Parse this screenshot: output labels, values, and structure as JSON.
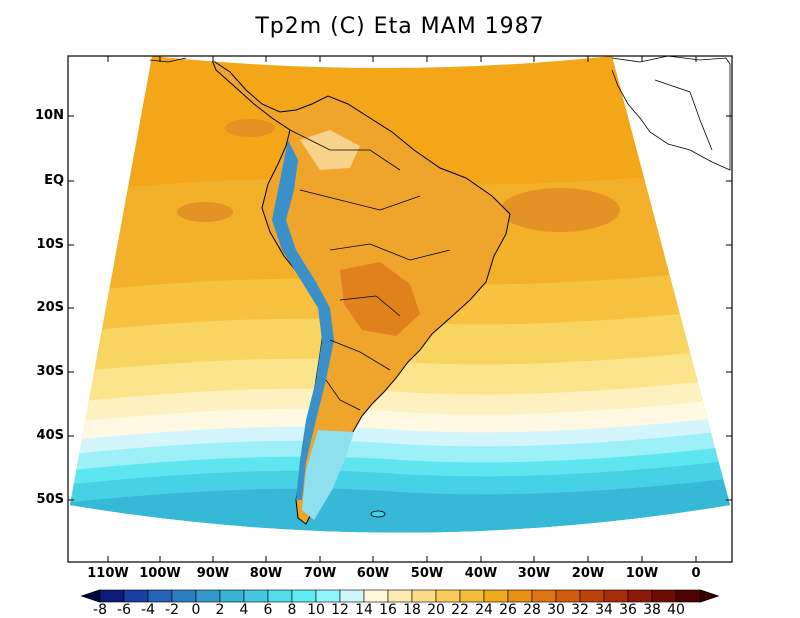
{
  "title": "Tp2m (C) Eta MAM 1987",
  "lat_labels": [
    "10N",
    "EQ",
    "10S",
    "20S",
    "30S",
    "40S",
    "50S"
  ],
  "lon_labels": [
    "110W",
    "100W",
    "90W",
    "80W",
    "70W",
    "60W",
    "50W",
    "40W",
    "30W",
    "20W",
    "10W",
    "0"
  ],
  "colorbar": {
    "tick_labels": [
      "-8",
      "-6",
      "-4",
      "-2",
      "0",
      "2",
      "4",
      "6",
      "8",
      "10",
      "12",
      "14",
      "16",
      "18",
      "20",
      "22",
      "24",
      "26",
      "28",
      "30",
      "32",
      "34",
      "36",
      "38",
      "40"
    ],
    "colors": [
      "#0c1a78",
      "#1a3fa0",
      "#2362b4",
      "#2a7fc4",
      "#3399cc",
      "#3ab2d6",
      "#46c6e0",
      "#52dcea",
      "#5fecf2",
      "#8ef6f8",
      "#cdf7fb",
      "#fff6dc",
      "#fdeab0",
      "#fbdb86",
      "#f8cb5c",
      "#f5bb3a",
      "#f0a81c",
      "#e8900f",
      "#dd7612",
      "#cf5c0f",
      "#bd430b",
      "#a52e08",
      "#8b1a06",
      "#6e0b04",
      "#4f0202"
    ]
  },
  "legend": {
    "ocean_colors": [
      "#f2a618",
      "#f3b02a",
      "#f6c23f",
      "#f8d460",
      "#fbe48c",
      "#fdf1c0",
      "#fff8e2",
      "#d2f6fb",
      "#9ef0f8",
      "#5ee6f0",
      "#45d2e4",
      "#37b8d6"
    ],
    "land_warm": "#efa52b",
    "land_hot": "#e0821c",
    "andes_cold": "#3a90c8",
    "coast_color": "#000000"
  }
}
